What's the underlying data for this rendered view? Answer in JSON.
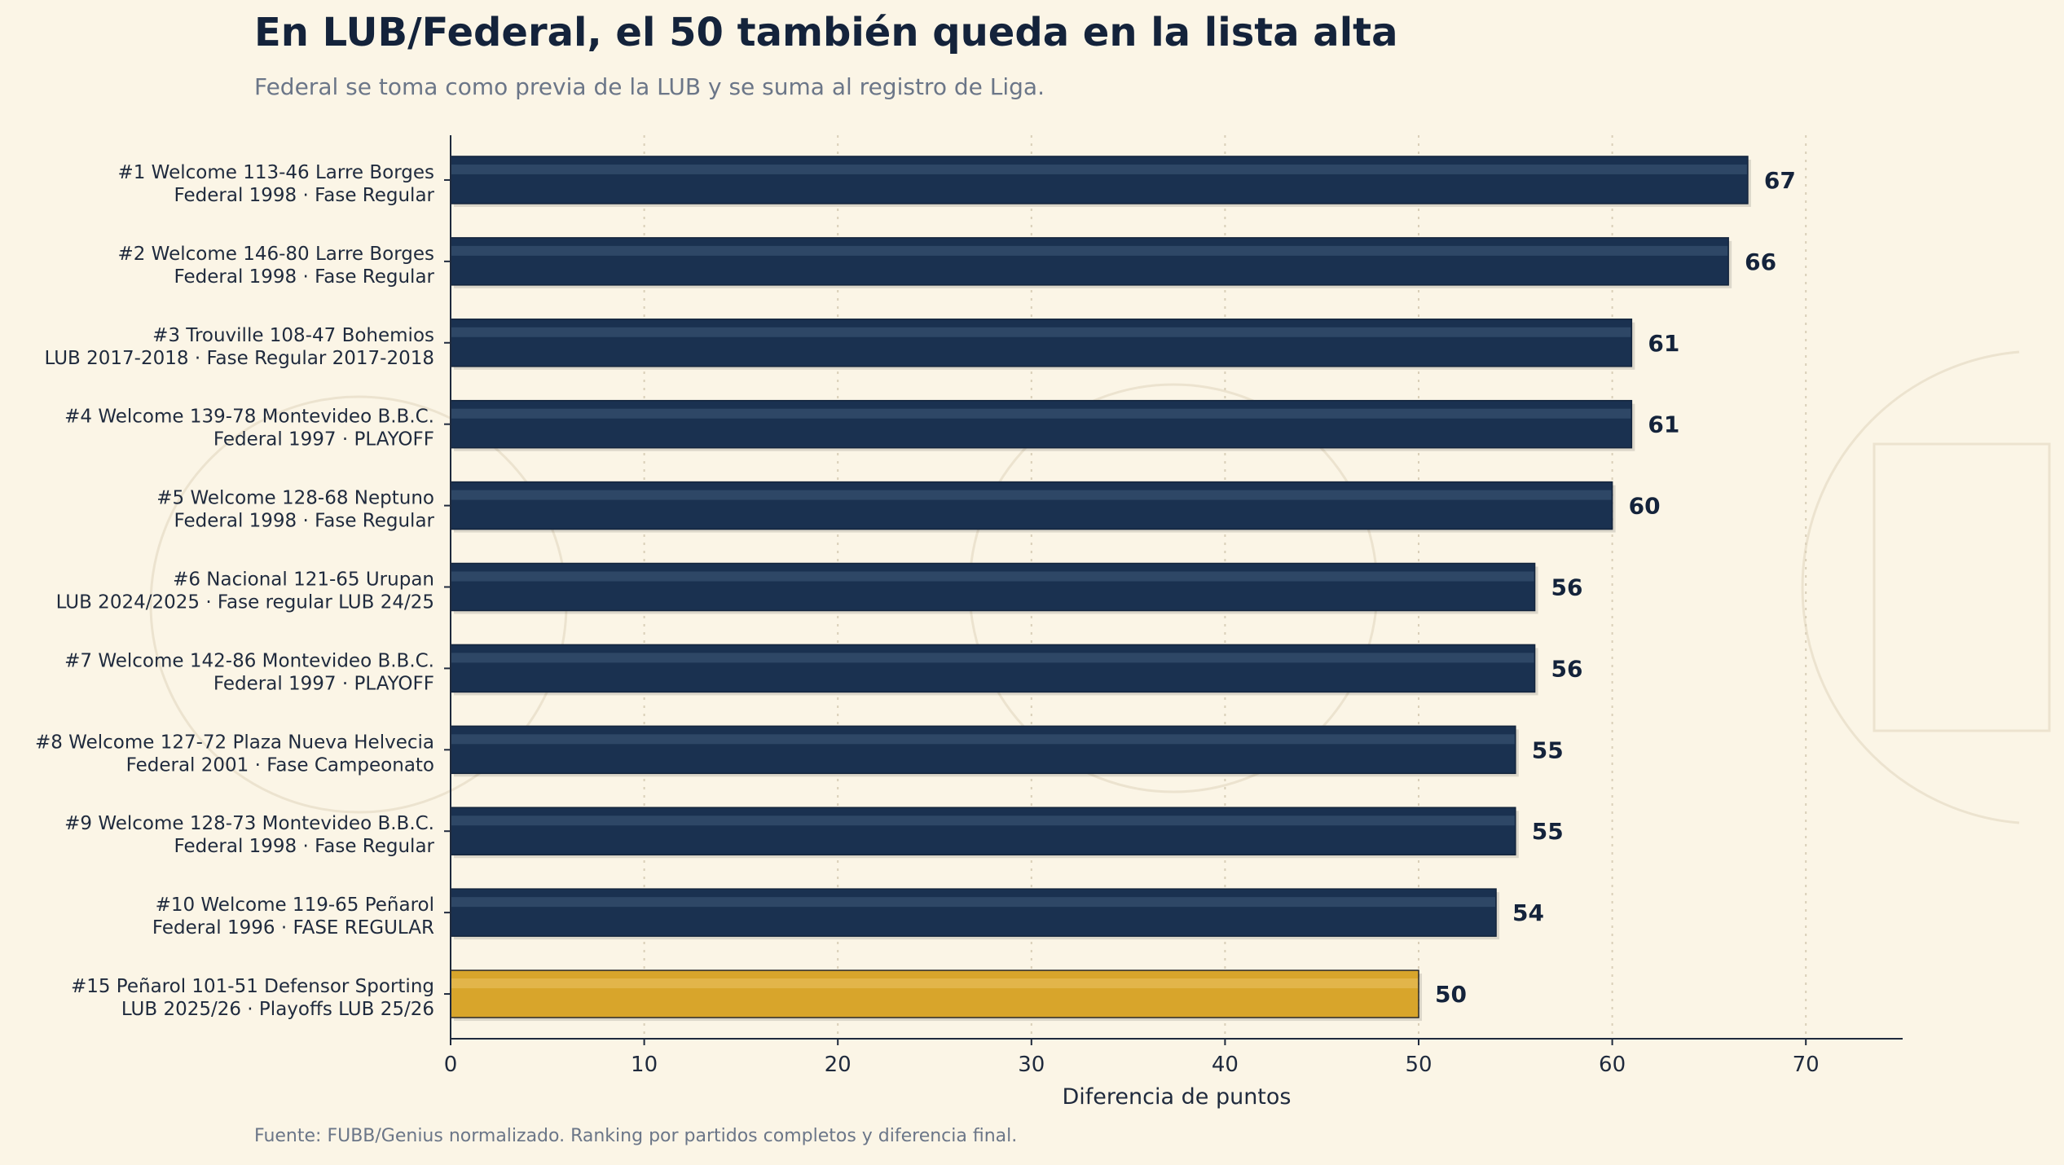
{
  "title": "En LUB/Federal, el 50 también queda en la lista alta",
  "subtitle": "Federal se toma como previa de la LUB y se suma al registro de Liga.",
  "source": "Fuente: FUBB/Genius normalizado. Ranking por partidos completos y diferencia final.",
  "colors": {
    "background": "#fbf5e6",
    "bar": "#1a3150",
    "bar_stripe": "#2e4766",
    "highlight_bar": "#d8a52b",
    "highlight_stripe": "#e2b54a",
    "text": "#14233b",
    "muted_text": "#6b7688"
  },
  "chart_data": {
    "type": "bar",
    "orientation": "horizontal",
    "xlabel": "Diferencia de puntos",
    "ylabel": "",
    "xlim": [
      0,
      75
    ],
    "xticks": [
      0,
      10,
      20,
      30,
      40,
      50,
      60,
      70
    ],
    "grid": "vertical dotted",
    "categories": [
      [
        "#1 Welcome 113-46 Larre Borges",
        "Federal 1998 · Fase Regular"
      ],
      [
        "#2 Welcome 146-80 Larre Borges",
        "Federal 1998 · Fase Regular"
      ],
      [
        "#3 Trouville 108-47 Bohemios",
        "LUB 2017-2018 · Fase Regular 2017-2018"
      ],
      [
        "#4 Welcome 139-78 Montevideo B.B.C.",
        "Federal 1997 · PLAYOFF"
      ],
      [
        "#5 Welcome 128-68 Neptuno",
        "Federal 1998 · Fase Regular"
      ],
      [
        "#6 Nacional 121-65 Urupan",
        "LUB 2024/2025 · Fase regular LUB 24/25"
      ],
      [
        "#7 Welcome 142-86 Montevideo B.B.C.",
        "Federal 1997 · PLAYOFF"
      ],
      [
        "#8 Welcome 127-72 Plaza Nueva Helvecia",
        "Federal 2001 · Fase Campeonato"
      ],
      [
        "#9 Welcome 128-73 Montevideo B.B.C.",
        "Federal 1998 · Fase Regular"
      ],
      [
        "#10 Welcome 119-65 Peñarol",
        "Federal 1996 · FASE REGULAR"
      ],
      [
        "#15 Peñarol 101-51 Defensor Sporting",
        "LUB 2025/26 · Playoffs LUB 25/26"
      ]
    ],
    "values": [
      67,
      66,
      61,
      61,
      60,
      56,
      56,
      55,
      55,
      54,
      50
    ],
    "value_labels": [
      "67",
      "66",
      "61",
      "61",
      "60",
      "56",
      "56",
      "55",
      "55",
      "54",
      "50"
    ],
    "highlight_index": 10
  }
}
